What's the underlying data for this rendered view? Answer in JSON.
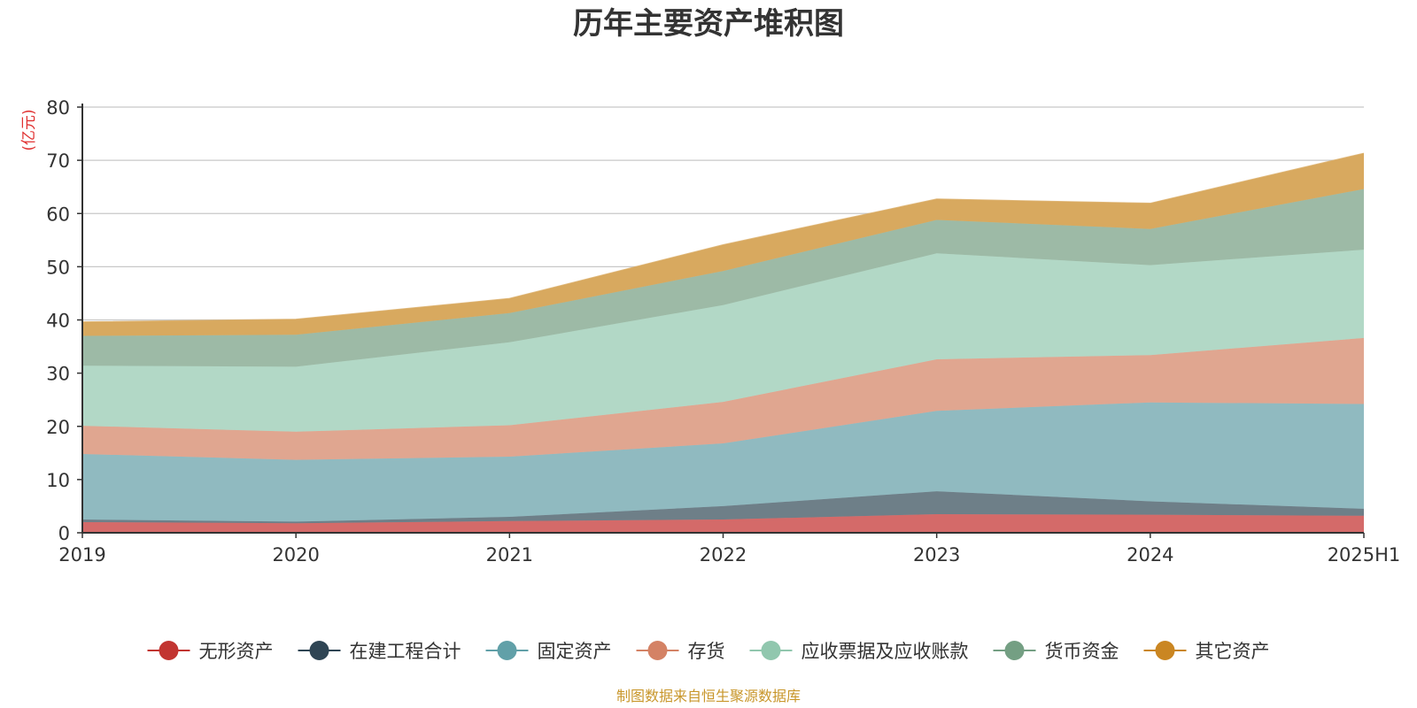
{
  "chart_data": {
    "type": "area",
    "stacked": true,
    "title": "历年主要资产堆积图",
    "ylabel": "(亿元)",
    "ylim": [
      0,
      80
    ],
    "yticks": [
      0,
      10,
      20,
      30,
      40,
      50,
      60,
      70,
      80
    ],
    "categories": [
      "2019",
      "2020",
      "2021",
      "2022",
      "2023",
      "2024",
      "2025H1"
    ],
    "grid": true,
    "legend_position": "bottom",
    "source": "制图数据来自恒生聚源数据库",
    "series": [
      {
        "name": "无形资产",
        "color": "#c23531",
        "fill": "#d46a69",
        "values": [
          2.0,
          1.8,
          2.2,
          2.5,
          3.5,
          3.4,
          3.2
        ]
      },
      {
        "name": "在建工程合计",
        "color": "#2f4554",
        "fill": "#6e7f88",
        "values": [
          0.5,
          0.3,
          0.8,
          2.5,
          4.3,
          2.5,
          1.3
        ]
      },
      {
        "name": "固定资产",
        "color": "#61a0a8",
        "fill": "#90bac0",
        "values": [
          12.3,
          11.6,
          11.3,
          11.8,
          15.1,
          18.6,
          19.7
        ]
      },
      {
        "name": "存货",
        "color": "#d48265",
        "fill": "#e0a690",
        "values": [
          5.3,
          5.3,
          5.9,
          7.8,
          9.7,
          8.9,
          12.4
        ]
      },
      {
        "name": "应收票据及应收账款",
        "color": "#91c7ae",
        "fill": "#b2d8c6",
        "values": [
          11.3,
          12.2,
          15.6,
          18.2,
          19.9,
          16.9,
          16.6
        ]
      },
      {
        "name": "货币资金",
        "color": "#749f83",
        "fill": "#9dbaa6",
        "values": [
          5.6,
          6.0,
          5.5,
          6.4,
          6.3,
          6.8,
          11.4
        ]
      },
      {
        "name": "其它资产",
        "color": "#ca8622",
        "fill": "#d8a95f",
        "values": [
          2.6,
          2.9,
          2.7,
          4.9,
          3.9,
          4.8,
          6.7
        ]
      }
    ]
  }
}
